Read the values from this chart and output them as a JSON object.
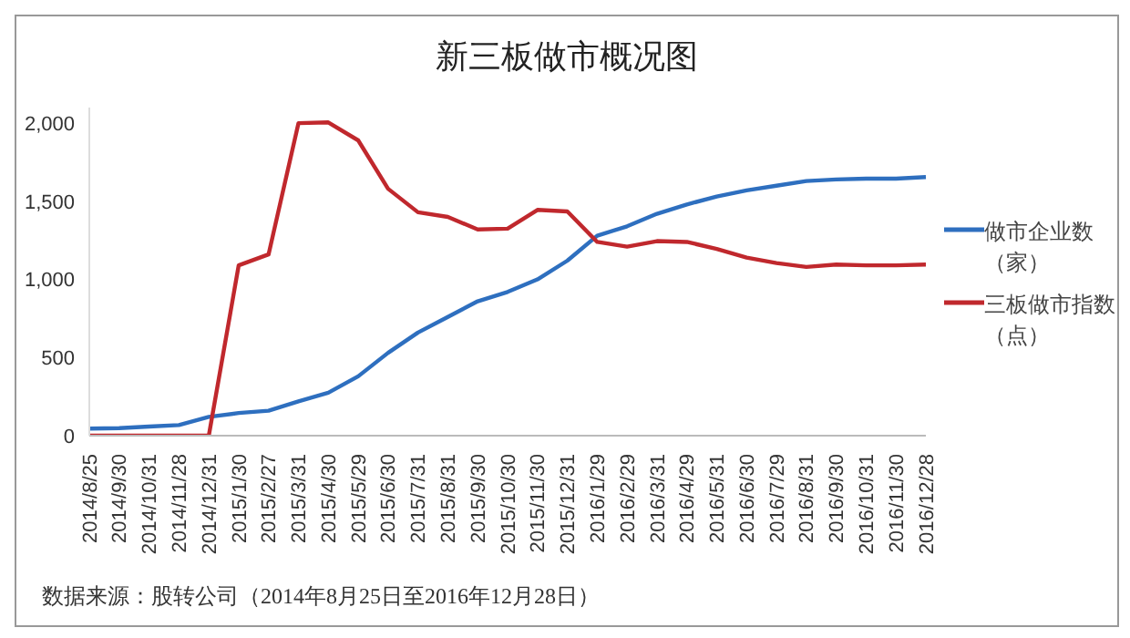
{
  "chart_data": {
    "type": "line",
    "title": "新三板做市概况图",
    "categories": [
      "2014/8/25",
      "2014/9/30",
      "2014/10/31",
      "2014/11/28",
      "2014/12/31",
      "2015/1/30",
      "2015/2/27",
      "2015/3/31",
      "2015/4/30",
      "2015/5/29",
      "2015/6/30",
      "2015/7/31",
      "2015/8/31",
      "2015/9/30",
      "2015/10/30",
      "2015/11/30",
      "2015/12/31",
      "2016/1/29",
      "2016/2/29",
      "2016/3/31",
      "2016/4/29",
      "2016/5/31",
      "2016/6/30",
      "2016/7/29",
      "2016/8/31",
      "2016/9/30",
      "2016/10/31",
      "2016/11/30",
      "2016/12/28"
    ],
    "series": [
      {
        "name": "做市企业数（家）",
        "color": "#2e6fbf",
        "values": [
          45,
          48,
          58,
          68,
          120,
          145,
          160,
          220,
          275,
          380,
          530,
          660,
          760,
          860,
          920,
          1000,
          1120,
          1280,
          1340,
          1420,
          1480,
          1530,
          1570,
          1600,
          1630,
          1640,
          1645,
          1645,
          1655
        ]
      },
      {
        "name": "三板做市指数（点）",
        "color": "#c0282d",
        "values": [
          0,
          0,
          0,
          0,
          0,
          1090,
          1160,
          2000,
          2005,
          1890,
          1580,
          1430,
          1400,
          1320,
          1325,
          1445,
          1435,
          1240,
          1210,
          1245,
          1240,
          1195,
          1140,
          1105,
          1080,
          1095,
          1090,
          1090,
          1095
        ]
      }
    ],
    "ylim": [
      0,
      2100
    ],
    "yticks": [
      0,
      500,
      {
        "value": 1000,
        "label": "1,000"
      },
      {
        "value": 1500,
        "label": "1,500"
      },
      {
        "value": 2000,
        "label": "2,000"
      }
    ],
    "grid": false,
    "legend": "right",
    "marker": "none",
    "line_style": "solid",
    "annotations": [
      "数据来源：股转公司（2014年8月25日至2016年12月28日）"
    ]
  }
}
